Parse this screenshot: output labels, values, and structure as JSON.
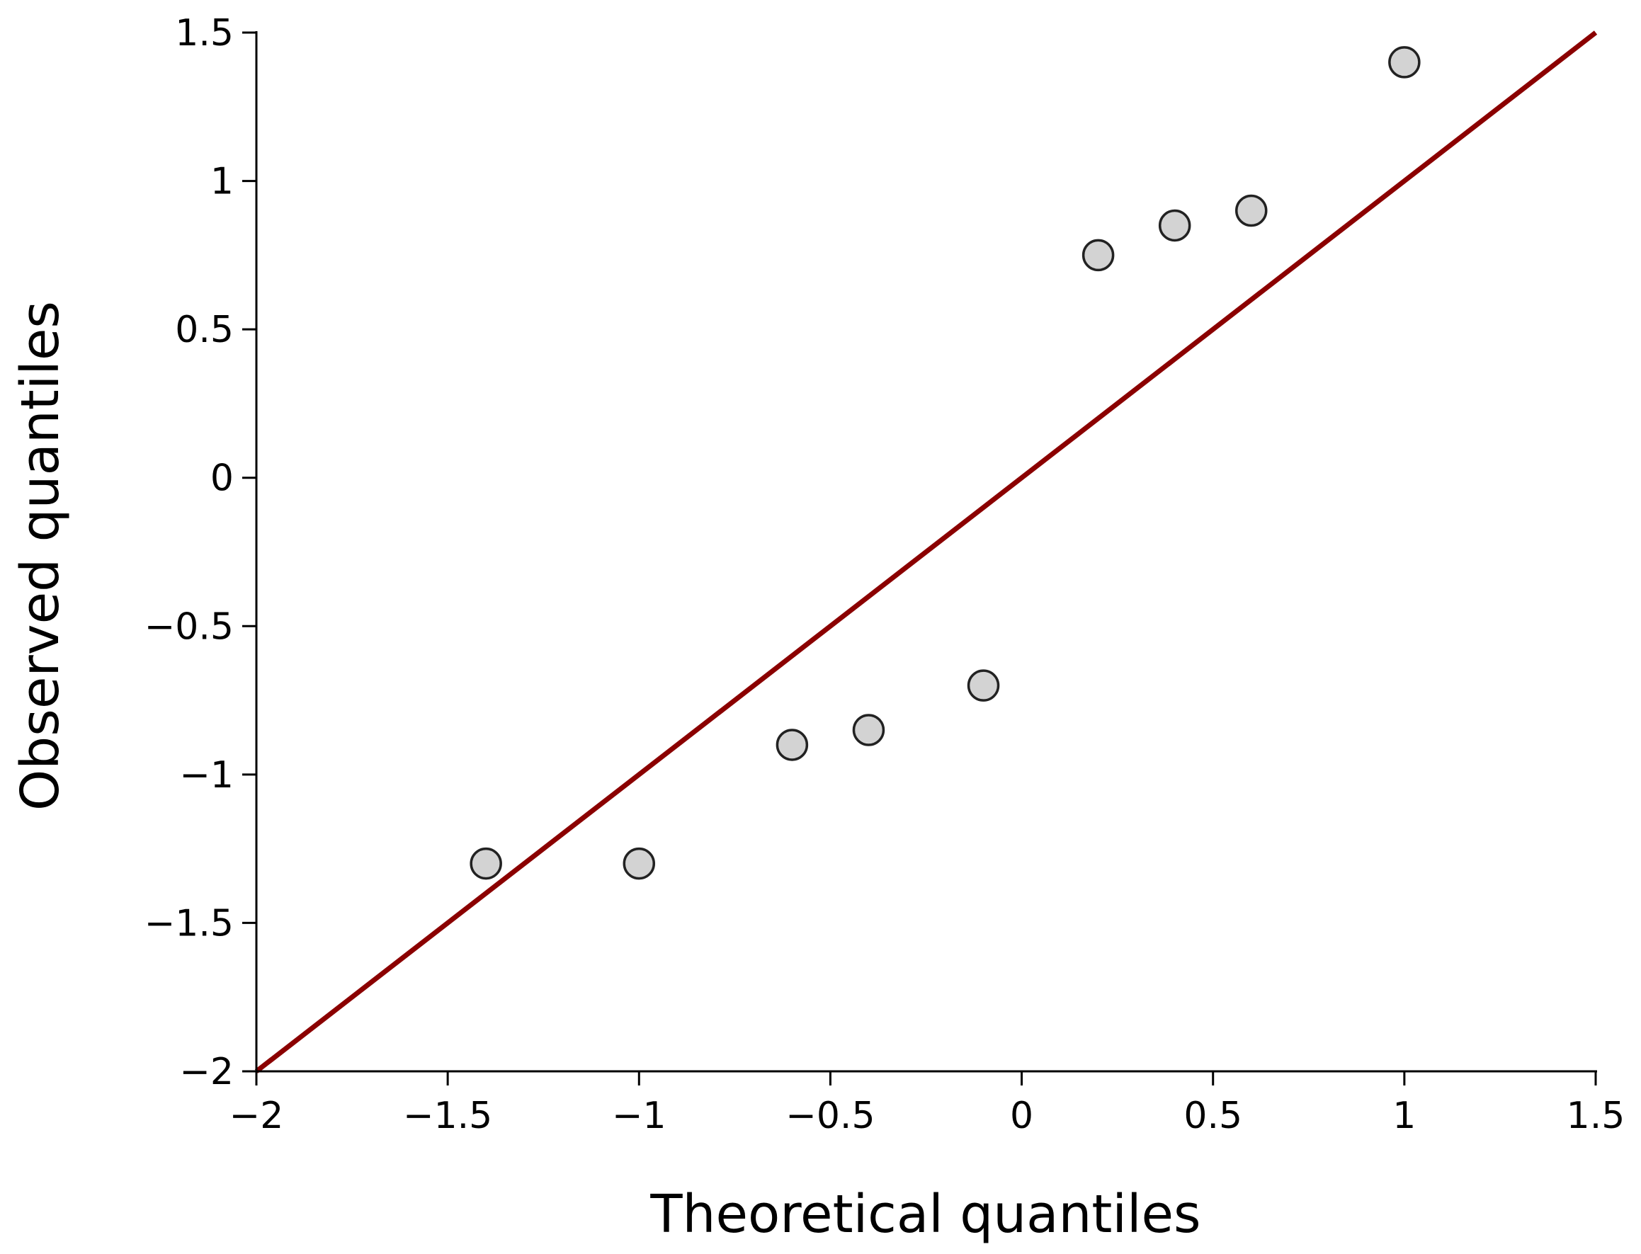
{
  "chart_data": {
    "type": "scatter",
    "title": "",
    "xlabel": "Theoretical quantiles",
    "ylabel": "Observed quantiles",
    "xlim": [
      -2,
      1.5
    ],
    "ylim": [
      -2,
      1.5
    ],
    "grid": false,
    "x_ticks": [
      -2,
      -1.5,
      -1,
      -0.5,
      0,
      0.5,
      1,
      1.5
    ],
    "x_tick_labels": [
      "−2",
      "−1.5",
      "−1",
      "−0.5",
      "0",
      "0.5",
      "1",
      "1.5"
    ],
    "y_ticks": [
      -2,
      -1.5,
      -1,
      -0.5,
      0,
      0.5,
      1,
      1.5
    ],
    "y_tick_labels": [
      "−2",
      "−1.5",
      "−1",
      "−0.5",
      "0",
      "0.5",
      "1",
      "1.5"
    ],
    "points": [
      {
        "x": -1.4,
        "y": -1.3
      },
      {
        "x": -1.0,
        "y": -1.3
      },
      {
        "x": -0.6,
        "y": -0.9
      },
      {
        "x": -0.4,
        "y": -0.85
      },
      {
        "x": -0.1,
        "y": -0.7
      },
      {
        "x": 0.2,
        "y": 0.75
      },
      {
        "x": 0.4,
        "y": 0.85
      },
      {
        "x": 0.6,
        "y": 0.9
      },
      {
        "x": 1.0,
        "y": 1.4
      }
    ],
    "reference_line": {
      "x": [
        -2,
        1.5
      ],
      "y": [
        -2,
        1.5
      ]
    },
    "colors": {
      "point_fill": "#d3d3d3",
      "point_edge": "#222222",
      "line": "#8b0000",
      "axis": "#000000"
    }
  }
}
